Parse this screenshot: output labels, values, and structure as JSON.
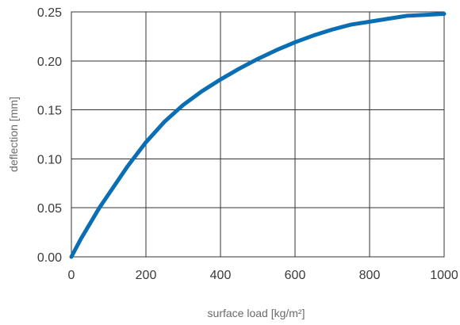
{
  "chart_data": {
    "type": "line",
    "title": "",
    "xlabel": "surface load [kg/m²]",
    "ylabel": "deflection [mm]",
    "xlim": [
      0,
      1000
    ],
    "ylim": [
      0,
      0.25
    ],
    "grid": true,
    "x_ticks": [
      0,
      200,
      400,
      600,
      800,
      1000
    ],
    "x_tick_labels": [
      "0",
      "200",
      "400",
      "600",
      "800",
      "1000"
    ],
    "y_ticks": [
      0,
      0.05,
      0.1,
      0.15,
      0.2,
      0.25
    ],
    "y_tick_labels": [
      "0.00",
      "0.05",
      "0.10",
      "0.15",
      "0.20",
      "0.25"
    ],
    "series": [
      {
        "color": "#0a6eb4",
        "x": [
          0,
          25,
          50,
          75,
          100,
          150,
          200,
          250,
          300,
          350,
          400,
          450,
          500,
          550,
          600,
          650,
          700,
          750,
          800,
          850,
          900,
          950,
          1000
        ],
        "y": [
          0,
          0.018,
          0.034,
          0.05,
          0.064,
          0.092,
          0.117,
          0.138,
          0.155,
          0.169,
          0.181,
          0.192,
          0.202,
          0.211,
          0.219,
          0.226,
          0.232,
          0.237,
          0.24,
          0.243,
          0.246,
          0.247,
          0.248
        ]
      }
    ]
  }
}
